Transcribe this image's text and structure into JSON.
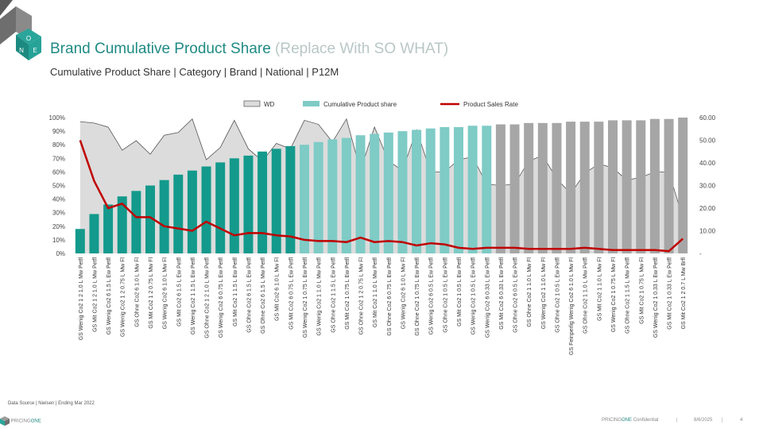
{
  "header": {
    "title": "Brand Cumulative Product Share",
    "title_hint": "(Replace With SO WHAT)",
    "subtitle": "Cumulative Product Share | Category | Brand | National | P12M"
  },
  "logo": {
    "letters": [
      "O",
      "N",
      "E"
    ]
  },
  "footer": {
    "source": "Data Source | Nielsen | Ending Mar 2022",
    "brand_pre": "PRICING",
    "brand_post": "ONE",
    "confidential_pre": "PRICING",
    "confidential_mid": "ONE",
    "confidential_post": " Confidential",
    "separator": "|",
    "date": "8/6/2025",
    "page": "4"
  },
  "colors": {
    "teal_dark": "#139a8c",
    "teal_light": "#7fcbc6",
    "grey": "#a6a6a6",
    "wd_fill": "#dcdcdc",
    "wd_line": "#555555",
    "rate_line": "#c00000",
    "title": "#1f8a84"
  },
  "chart_data": {
    "type": "bar",
    "legend": [
      "WD",
      "Cumulative Product share",
      "Product Sales Rate"
    ],
    "legend_position": "top",
    "y_left": {
      "ticks": [
        "0%",
        "10%",
        "20%",
        "30%",
        "40%",
        "50%",
        "60%",
        "70%",
        "80%",
        "90%",
        "100%"
      ],
      "range": [
        0,
        100
      ]
    },
    "y_right": {
      "ticks": [
        "-",
        "10.00",
        "20.00",
        "30.00",
        "40.00",
        "50.00",
        "60.00"
      ],
      "range": [
        0,
        60
      ]
    },
    "categories": [
      "GS Wenig Co2 1 2 1.0 L Mw Petfl",
      "GS Mit Co2 1 2 1.0 L Mw Petfl",
      "GS Wenig Co2 6 1.5 L Ew Petfl",
      "GS Wenig Co2 1 2 0.75 L Mw Fl",
      "GS Ohne Co2 6 1.0 L Mw Fl",
      "GS Mit Co2 1 2 0.75 L Mw Fl",
      "GS Wenig Co2 6 1.0 L Mw Fl",
      "GS Mit Co2 6 1.5 L Ew Petfl",
      "GS Wenig Co2 1 1.5 L Ew Petfl",
      "GS Ohne Co2 1 2 1.0 L Mw Petfl",
      "GS Wenig Co2 6 0.75 L Ew Petfl",
      "GS Mit Co2 1 1.5 L Ew Petfl",
      "GS Ohne Co2 6 1.5 L Ew Petfl",
      "GS Ohne Co2 6 1.5 L Mw Petfl",
      "GS Mit Co2 6 1.0 L Mw Fl",
      "GS Mit Co2 6 0.75 L Ew Petfl",
      "GS Wenig Co2 1 0.75 L Ew Petfl",
      "GS Wenig Co2 1 1.0 L Mw Petfl",
      "GS Ohne Co2 1 1.5 L Ew Petfl",
      "GS Mit Co2 1 0.75 L Ew Petfl",
      "GS Ohne Co2 1 2 0.75 L Mw Fl",
      "GS Mit Co2 1 1.0 L Mw Petfl",
      "GS Ohne Co2 6 0.75 L Ew Petfl",
      "GS Wenig Co2 6 1.0 L Mw Fl",
      "GS Ohne Co2 1 0.75 L Ew Petfl",
      "GS Wenig Co2 6 0.5 L Ew Petfl",
      "GS Ohne Co2 1 0.5 L Ew Petfl",
      "GS Mit Co2 1 0.5 L Ew Petfl",
      "GS Wenig Co2 1 0.5 L Ew Petfl",
      "GS Wenig Co2 6 0.33 L Ew Petfl",
      "GS Mit Co2 6 0.33 L Ew Petfl",
      "GS Ohne Co2 6 0.5 L Ew Petfl",
      "GS Ohne Co2 1 1.0 L Mw Fl",
      "GS Wenig Co2 1 1.0 L Mw Fl",
      "GS Ohne Co2 1 0.5 L Ew Petfl",
      "GS Feinperlig Wenig Co2 6 1.0 L Mw Fl",
      "GS Ohne Co2 1 1.0 L Mw Petfl",
      "GS Mit Co2 1 1.0 L Mw Fl",
      "GS Wenig Co2 1 0.75 L Mw Fl",
      "GS Ohne Co2 1 1.5 L Mw Petfl",
      "GS Mit Co2 1 0.75 L Mw Fl",
      "GS Wenig Co2 1 0.33 L Ew Petfl",
      "GS Mit Co2 1 0.33 L Ew Petfl",
      "GS Mit Co2 1 2 0.7 L Mw Brfl"
    ],
    "series": [
      {
        "name": "WD",
        "type": "area",
        "values": [
          97,
          96,
          93,
          76,
          83,
          73,
          87,
          89,
          99,
          69,
          78,
          98,
          77,
          68,
          81,
          77,
          98,
          95,
          82,
          99,
          61,
          93,
          68,
          61,
          91,
          60,
          60,
          69,
          71,
          51,
          50,
          51,
          68,
          72,
          55,
          44,
          59,
          66,
          63,
          54,
          56,
          60,
          60,
          26
        ]
      },
      {
        "name": "Cumulative Product share",
        "type": "bar",
        "values": [
          18,
          29,
          36,
          42,
          46,
          50,
          54,
          58,
          61,
          64,
          67,
          70,
          72,
          75,
          77,
          79,
          80,
          82,
          84,
          85,
          87,
          88,
          89,
          90,
          91,
          92,
          93,
          93,
          94,
          94,
          95,
          95,
          96,
          96,
          96,
          97,
          97,
          97,
          98,
          98,
          98,
          99,
          99,
          100
        ],
        "color_groups": [
          16,
          30
        ]
      },
      {
        "name": "Product Sales Rate",
        "type": "line",
        "values": [
          50,
          32,
          20,
          22,
          16,
          16,
          12,
          11,
          10,
          14,
          11,
          8,
          9,
          9,
          8,
          7.5,
          6,
          5.5,
          5.5,
          5,
          7,
          5,
          5.5,
          5,
          3.5,
          4.5,
          4,
          2.5,
          2,
          2.5,
          2.5,
          2.5,
          2,
          2,
          2,
          2,
          2.5,
          2,
          1.5,
          1.5,
          1.5,
          1.5,
          1,
          6.5
        ]
      }
    ]
  }
}
